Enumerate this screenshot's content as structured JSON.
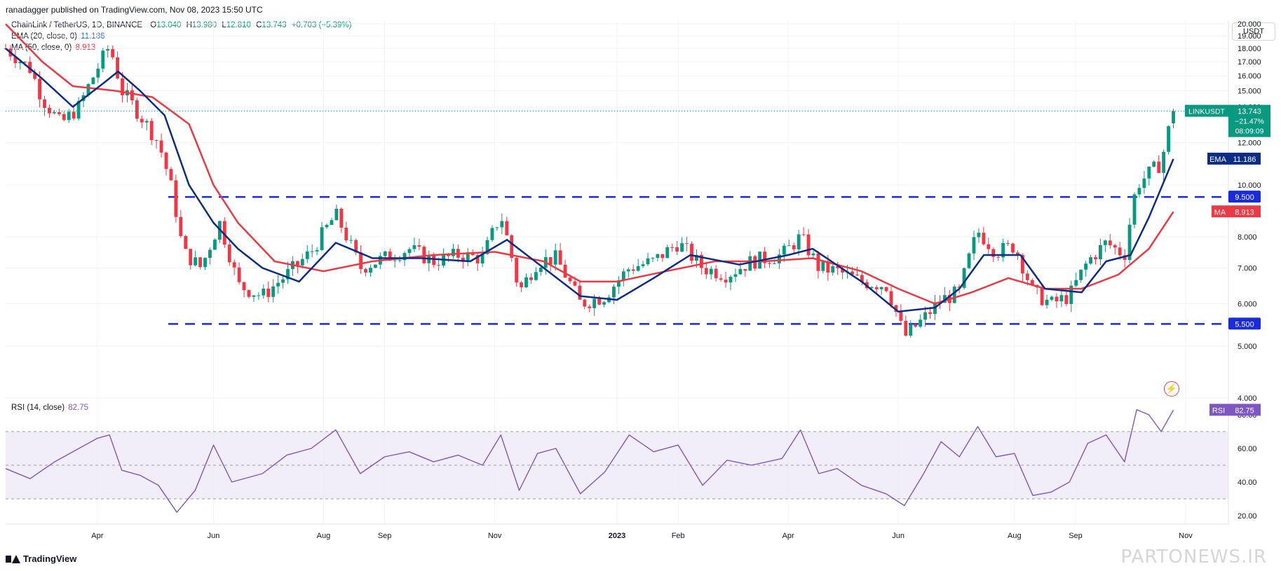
{
  "header": {
    "published": "ranadagger published on TradingView.com, Nov 08, 2023 15:50 UTC"
  },
  "legend": {
    "symbol": "ChainLink / TetherUS, 1D, BINANCE",
    "open_label": "O",
    "open": "13.040",
    "high_label": "H",
    "high": "13.980",
    "low_label": "L",
    "low": "12.810",
    "close_label": "C",
    "close": "13.743",
    "change": "+0.703 (+5.39%)",
    "ema_label": "EMA (20, close, 0)",
    "ema_value": "11.186",
    "ma_label": "MA (50, close, 0)",
    "ma_value": "8.913",
    "rsi_label": "RSI (14, close)",
    "rsi_value": "82.75"
  },
  "currency_button": "USDT",
  "price_tag": {
    "symbol": "LINKUSDT",
    "price": "13.743",
    "change_pct": "−21.47%",
    "countdown": "08:09:09"
  },
  "indicator_tags": {
    "ema": "EMA",
    "ema_value": "11.186",
    "ma": "MA",
    "ma_value": "8.913",
    "rsi": "RSI",
    "rsi_value": "82.75"
  },
  "levels": {
    "upper": "9.500",
    "lower": "5.500"
  },
  "colors": {
    "up": "#089981",
    "down": "#f23645",
    "ema": "#0c2d83",
    "ma": "#ea3a45",
    "rsi": "#7e57c2",
    "level": "#1a2bd9",
    "rsi_band": "#ede7f6"
  },
  "footer": {
    "logo_text": "TradingView",
    "watermark": "PARTONEWS.IR"
  },
  "chart_data": {
    "type": "candlestick",
    "price_axis": {
      "ticks": [
        "20.000",
        "19.000",
        "18.000",
        "17.000",
        "16.000",
        "15.000",
        "14.000",
        "12.000",
        "10.000",
        "8.000",
        "7.000",
        "6.000",
        "5.000",
        "4.000"
      ],
      "scale": "log"
    },
    "time_axis": [
      "Apr",
      "Jun",
      "Aug",
      "Sep",
      "Nov",
      "2023",
      "Feb",
      "Apr",
      "Jun",
      "Aug",
      "Sep",
      "Nov"
    ],
    "rsi_axis": [
      "80.00",
      "60.00",
      "40.00",
      "20.00"
    ],
    "horizontal_levels": [
      9.5,
      5.5
    ],
    "close_series": [
      {
        "t": 0,
        "c": 18.0
      },
      {
        "t": 0.02,
        "c": 16.5
      },
      {
        "t": 0.03,
        "c": 14.5
      },
      {
        "t": 0.045,
        "c": 13.0
      },
      {
        "t": 0.06,
        "c": 14.0
      },
      {
        "t": 0.075,
        "c": 16.5
      },
      {
        "t": 0.085,
        "c": 18.2
      },
      {
        "t": 0.095,
        "c": 15.0
      },
      {
        "t": 0.11,
        "c": 13.5
      },
      {
        "t": 0.125,
        "c": 12.0
      },
      {
        "t": 0.135,
        "c": 10.0
      },
      {
        "t": 0.145,
        "c": 7.5
      },
      {
        "t": 0.16,
        "c": 7.0
      },
      {
        "t": 0.175,
        "c": 8.5
      },
      {
        "t": 0.19,
        "c": 6.5
      },
      {
        "t": 0.21,
        "c": 6.2
      },
      {
        "t": 0.23,
        "c": 6.8
      },
      {
        "t": 0.25,
        "c": 7.5
      },
      {
        "t": 0.27,
        "c": 8.8
      },
      {
        "t": 0.29,
        "c": 7.0
      },
      {
        "t": 0.31,
        "c": 7.3
      },
      {
        "t": 0.33,
        "c": 7.6
      },
      {
        "t": 0.35,
        "c": 7.2
      },
      {
        "t": 0.37,
        "c": 7.4
      },
      {
        "t": 0.39,
        "c": 7.3
      },
      {
        "t": 0.405,
        "c": 8.8
      },
      {
        "t": 0.42,
        "c": 6.3
      },
      {
        "t": 0.435,
        "c": 7.2
      },
      {
        "t": 0.45,
        "c": 7.3
      },
      {
        "t": 0.47,
        "c": 6.0
      },
      {
        "t": 0.49,
        "c": 6.2
      },
      {
        "t": 0.51,
        "c": 7.0
      },
      {
        "t": 0.53,
        "c": 7.2
      },
      {
        "t": 0.55,
        "c": 7.8
      },
      {
        "t": 0.57,
        "c": 7.0
      },
      {
        "t": 0.59,
        "c": 6.8
      },
      {
        "t": 0.61,
        "c": 7.2
      },
      {
        "t": 0.635,
        "c": 7.4
      },
      {
        "t": 0.65,
        "c": 8.0
      },
      {
        "t": 0.665,
        "c": 7.0
      },
      {
        "t": 0.68,
        "c": 6.9
      },
      {
        "t": 0.7,
        "c": 6.6
      },
      {
        "t": 0.72,
        "c": 6.5
      },
      {
        "t": 0.735,
        "c": 5.2
      },
      {
        "t": 0.75,
        "c": 5.6
      },
      {
        "t": 0.765,
        "c": 6.1
      },
      {
        "t": 0.78,
        "c": 6.3
      },
      {
        "t": 0.795,
        "c": 8.2
      },
      {
        "t": 0.81,
        "c": 7.5
      },
      {
        "t": 0.825,
        "c": 7.7
      },
      {
        "t": 0.84,
        "c": 6.3
      },
      {
        "t": 0.855,
        "c": 6.0
      },
      {
        "t": 0.87,
        "c": 6.2
      },
      {
        "t": 0.885,
        "c": 7.2
      },
      {
        "t": 0.9,
        "c": 7.8
      },
      {
        "t": 0.915,
        "c": 7.4
      },
      {
        "t": 0.925,
        "c": 10.0
      },
      {
        "t": 0.935,
        "c": 10.5
      },
      {
        "t": 0.945,
        "c": 11.0
      },
      {
        "t": 0.955,
        "c": 13.743
      }
    ],
    "ema_series": [
      {
        "t": 0,
        "c": 18.0
      },
      {
        "t": 0.03,
        "c": 15.8
      },
      {
        "t": 0.055,
        "c": 14.0
      },
      {
        "t": 0.08,
        "c": 15.5
      },
      {
        "t": 0.092,
        "c": 16.3
      },
      {
        "t": 0.11,
        "c": 15.0
      },
      {
        "t": 0.13,
        "c": 13.5
      },
      {
        "t": 0.15,
        "c": 10.0
      },
      {
        "t": 0.17,
        "c": 8.5
      },
      {
        "t": 0.19,
        "c": 7.6
      },
      {
        "t": 0.21,
        "c": 7.0
      },
      {
        "t": 0.24,
        "c": 6.6
      },
      {
        "t": 0.27,
        "c": 7.8
      },
      {
        "t": 0.3,
        "c": 7.3
      },
      {
        "t": 0.34,
        "c": 7.3
      },
      {
        "t": 0.38,
        "c": 7.2
      },
      {
        "t": 0.41,
        "c": 7.9
      },
      {
        "t": 0.44,
        "c": 7.0
      },
      {
        "t": 0.47,
        "c": 6.2
      },
      {
        "t": 0.5,
        "c": 6.1
      },
      {
        "t": 0.53,
        "c": 6.7
      },
      {
        "t": 0.56,
        "c": 7.4
      },
      {
        "t": 0.6,
        "c": 7.1
      },
      {
        "t": 0.64,
        "c": 7.4
      },
      {
        "t": 0.66,
        "c": 7.6
      },
      {
        "t": 0.7,
        "c": 6.6
      },
      {
        "t": 0.73,
        "c": 5.8
      },
      {
        "t": 0.76,
        "c": 5.9
      },
      {
        "t": 0.78,
        "c": 6.4
      },
      {
        "t": 0.8,
        "c": 7.4
      },
      {
        "t": 0.83,
        "c": 7.4
      },
      {
        "t": 0.85,
        "c": 6.4
      },
      {
        "t": 0.88,
        "c": 6.3
      },
      {
        "t": 0.9,
        "c": 7.2
      },
      {
        "t": 0.92,
        "c": 7.4
      },
      {
        "t": 0.935,
        "c": 8.7
      },
      {
        "t": 0.955,
        "c": 11.186
      }
    ],
    "ma_series": [
      {
        "t": 0,
        "c": 20.0
      },
      {
        "t": 0.03,
        "c": 17.0
      },
      {
        "t": 0.055,
        "c": 15.3
      },
      {
        "t": 0.09,
        "c": 15.0
      },
      {
        "t": 0.12,
        "c": 14.6
      },
      {
        "t": 0.15,
        "c": 13.0
      },
      {
        "t": 0.17,
        "c": 10.0
      },
      {
        "t": 0.19,
        "c": 8.5
      },
      {
        "t": 0.22,
        "c": 7.2
      },
      {
        "t": 0.26,
        "c": 6.9
      },
      {
        "t": 0.3,
        "c": 7.2
      },
      {
        "t": 0.35,
        "c": 7.4
      },
      {
        "t": 0.4,
        "c": 7.5
      },
      {
        "t": 0.44,
        "c": 7.2
      },
      {
        "t": 0.47,
        "c": 6.6
      },
      {
        "t": 0.5,
        "c": 6.6
      },
      {
        "t": 0.54,
        "c": 6.9
      },
      {
        "t": 0.58,
        "c": 7.2
      },
      {
        "t": 0.62,
        "c": 7.2
      },
      {
        "t": 0.66,
        "c": 7.3
      },
      {
        "t": 0.7,
        "c": 6.9
      },
      {
        "t": 0.73,
        "c": 6.4
      },
      {
        "t": 0.76,
        "c": 6.0
      },
      {
        "t": 0.79,
        "c": 6.3
      },
      {
        "t": 0.82,
        "c": 6.7
      },
      {
        "t": 0.85,
        "c": 6.4
      },
      {
        "t": 0.88,
        "c": 6.4
      },
      {
        "t": 0.91,
        "c": 6.8
      },
      {
        "t": 0.935,
        "c": 7.6
      },
      {
        "t": 0.955,
        "c": 8.913
      }
    ],
    "rsi_series": [
      {
        "t": 0,
        "c": 48
      },
      {
        "t": 0.02,
        "c": 42
      },
      {
        "t": 0.04,
        "c": 52
      },
      {
        "t": 0.06,
        "c": 60
      },
      {
        "t": 0.075,
        "c": 66
      },
      {
        "t": 0.085,
        "c": 68
      },
      {
        "t": 0.095,
        "c": 47
      },
      {
        "t": 0.11,
        "c": 44
      },
      {
        "t": 0.125,
        "c": 38
      },
      {
        "t": 0.14,
        "c": 22
      },
      {
        "t": 0.155,
        "c": 35
      },
      {
        "t": 0.17,
        "c": 62
      },
      {
        "t": 0.185,
        "c": 40
      },
      {
        "t": 0.21,
        "c": 45
      },
      {
        "t": 0.23,
        "c": 56
      },
      {
        "t": 0.25,
        "c": 60
      },
      {
        "t": 0.27,
        "c": 71
      },
      {
        "t": 0.29,
        "c": 45
      },
      {
        "t": 0.31,
        "c": 55
      },
      {
        "t": 0.33,
        "c": 58
      },
      {
        "t": 0.35,
        "c": 52
      },
      {
        "t": 0.37,
        "c": 56
      },
      {
        "t": 0.39,
        "c": 50
      },
      {
        "t": 0.405,
        "c": 68
      },
      {
        "t": 0.42,
        "c": 35
      },
      {
        "t": 0.435,
        "c": 57
      },
      {
        "t": 0.45,
        "c": 60
      },
      {
        "t": 0.47,
        "c": 33
      },
      {
        "t": 0.49,
        "c": 46
      },
      {
        "t": 0.51,
        "c": 68
      },
      {
        "t": 0.53,
        "c": 58
      },
      {
        "t": 0.55,
        "c": 62
      },
      {
        "t": 0.57,
        "c": 38
      },
      {
        "t": 0.59,
        "c": 53
      },
      {
        "t": 0.61,
        "c": 50
      },
      {
        "t": 0.635,
        "c": 54
      },
      {
        "t": 0.65,
        "c": 71
      },
      {
        "t": 0.665,
        "c": 45
      },
      {
        "t": 0.68,
        "c": 48
      },
      {
        "t": 0.7,
        "c": 38
      },
      {
        "t": 0.72,
        "c": 33
      },
      {
        "t": 0.735,
        "c": 26
      },
      {
        "t": 0.75,
        "c": 44
      },
      {
        "t": 0.765,
        "c": 64
      },
      {
        "t": 0.78,
        "c": 55
      },
      {
        "t": 0.795,
        "c": 73
      },
      {
        "t": 0.81,
        "c": 55
      },
      {
        "t": 0.825,
        "c": 57
      },
      {
        "t": 0.84,
        "c": 32
      },
      {
        "t": 0.855,
        "c": 34
      },
      {
        "t": 0.87,
        "c": 40
      },
      {
        "t": 0.885,
        "c": 63
      },
      {
        "t": 0.9,
        "c": 68
      },
      {
        "t": 0.915,
        "c": 52
      },
      {
        "t": 0.925,
        "c": 83
      },
      {
        "t": 0.935,
        "c": 80
      },
      {
        "t": 0.945,
        "c": 70
      },
      {
        "t": 0.955,
        "c": 82.75
      }
    ]
  }
}
